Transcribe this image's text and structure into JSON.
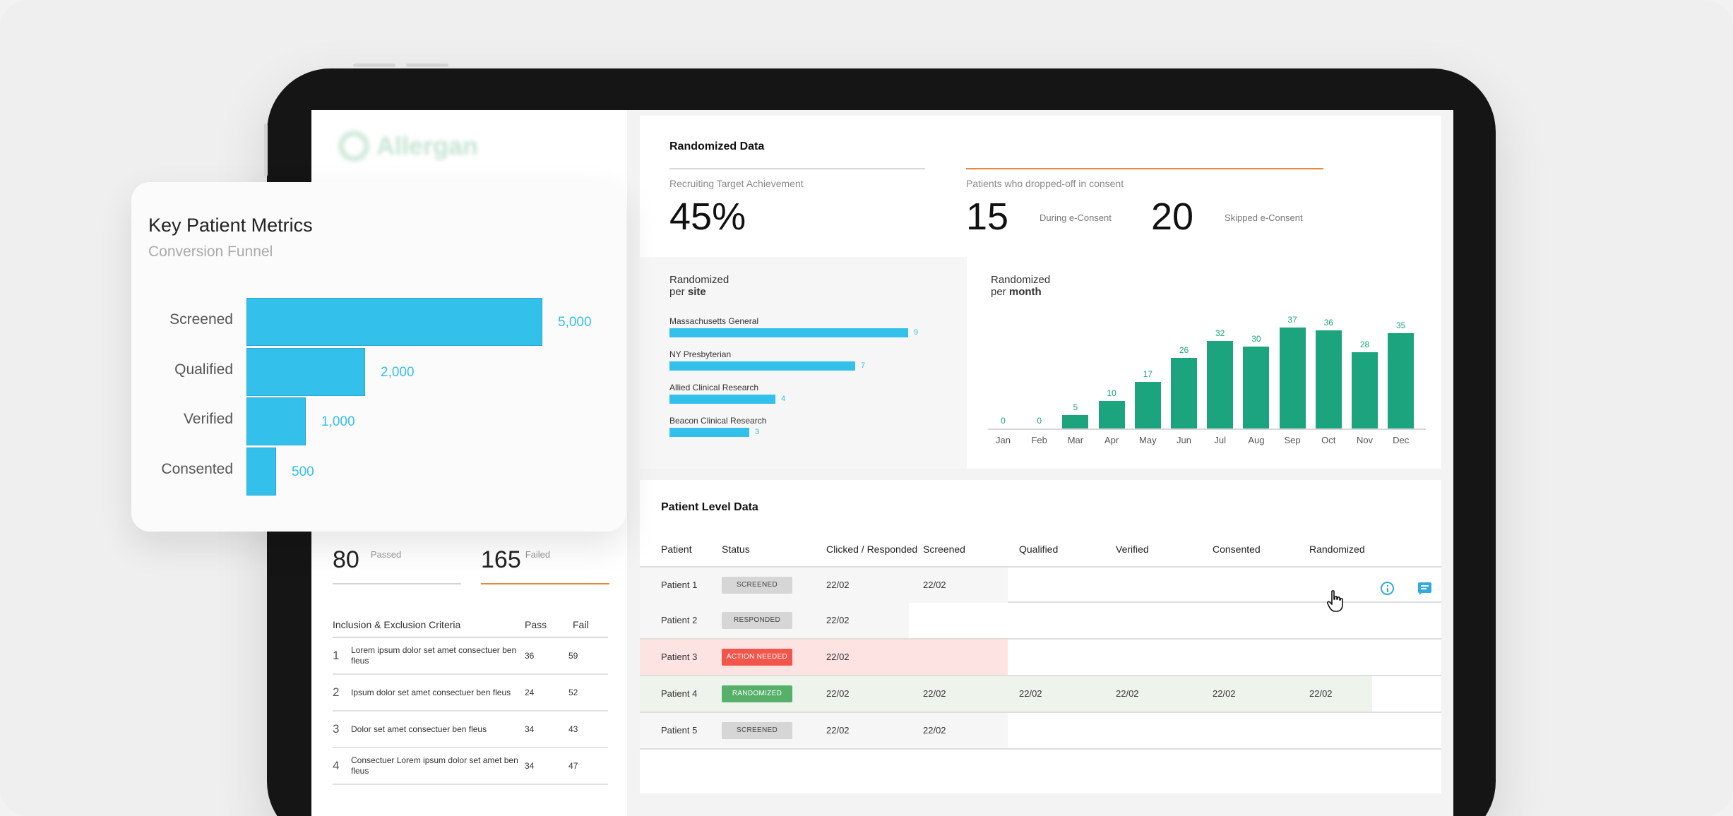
{
  "sidebar": {
    "logo_text": "Allergan",
    "passed": {
      "value": "80",
      "label": "Passed"
    },
    "failed": {
      "value": "165",
      "label": "Failed"
    },
    "criteria": {
      "headers": [
        "Inclusion & Exclusion Criteria",
        "Pass",
        "Fail"
      ],
      "rows": [
        {
          "idx": "1",
          "text": "Lorem ipsum dolor set amet consectuer ben fleus",
          "pass": "36",
          "fail": "59"
        },
        {
          "idx": "2",
          "text": "Ipsum dolor set amet consectuer ben fleus",
          "pass": "24",
          "fail": "52"
        },
        {
          "idx": "3",
          "text": "Dolor set amet consectuer ben fleus",
          "pass": "34",
          "fail": "43"
        },
        {
          "idx": "4",
          "text": "Consectuer Lorem ipsum dolor set amet ben fleus",
          "pass": "34",
          "fail": "47"
        }
      ]
    }
  },
  "randomized": {
    "title": "Randomized Data",
    "target": {
      "label": "Recruiting Target Achievement",
      "value": "45%"
    },
    "dropoff": {
      "label": "Patients who dropped-off in consent",
      "during": {
        "value": "15",
        "label": "During e-Consent"
      },
      "skipped": {
        "value": "20",
        "label": "Skipped e-Consent"
      }
    },
    "per_site_title": {
      "line1": "Randomized",
      "prefix": "per",
      "emph": "site"
    },
    "per_month_title": {
      "line1": "Randomized",
      "prefix": "per",
      "emph": "month"
    }
  },
  "patients": {
    "title": "Patient Level Data",
    "headers": [
      "Patient",
      "Status",
      "Clicked / Responded",
      "Screened",
      "Qualified",
      "Verified",
      "Consented",
      "Randomized"
    ],
    "rows": [
      {
        "name": "Patient 1",
        "status": "SCREENED",
        "clicked": "22/02",
        "screened": "22/02",
        "qualified": "",
        "verified": "",
        "consented": "",
        "randomized": ""
      },
      {
        "name": "Patient 2",
        "status": "RESPONDED",
        "clicked": "22/02",
        "screened": "",
        "qualified": "",
        "verified": "",
        "consented": "",
        "randomized": ""
      },
      {
        "name": "Patient 3",
        "status": "ACTION NEEDED",
        "clicked": "22/02",
        "screened": "",
        "qualified": "",
        "verified": "",
        "consented": "",
        "randomized": ""
      },
      {
        "name": "Patient 4",
        "status": "RANDOMIZED",
        "clicked": "22/02",
        "screened": "22/02",
        "qualified": "22/02",
        "verified": "22/02",
        "consented": "22/02",
        "randomized": "22/02"
      },
      {
        "name": "Patient 5",
        "status": "SCREENED",
        "clicked": "22/02",
        "screened": "22/02",
        "qualified": "",
        "verified": "",
        "consented": "",
        "randomized": ""
      }
    ],
    "icons": [
      "info-icon",
      "chat-icon",
      "cursor-hand-icon"
    ]
  },
  "metrics_card": {
    "title": "Key Patient Metrics",
    "subtitle": "Conversion Funnel"
  },
  "colors": {
    "accent_blue": "#33c0ea",
    "accent_green": "#1ba47d",
    "accent_orange": "#e8883d",
    "action_red": "#f2564b",
    "randomized_green": "#56b06a"
  },
  "chart_data": [
    {
      "type": "bar",
      "orientation": "horizontal",
      "title": "Conversion Funnel",
      "categories": [
        "Screened",
        "Qualified",
        "Verified",
        "Consented"
      ],
      "values": [
        5000,
        2000,
        1000,
        500
      ],
      "value_labels": [
        "5,000",
        "2,000",
        "1,000",
        "500"
      ],
      "color": "#33c0ea"
    },
    {
      "type": "bar",
      "orientation": "horizontal",
      "categories": [
        "Massachusetts General",
        "NY Presbyterian",
        "Allied Clinical Research",
        "Beacon Clinical Research"
      ],
      "values": [
        9,
        7,
        4,
        3
      ],
      "color": "#33c0ea"
    },
    {
      "type": "bar",
      "categories": [
        "Jan",
        "Feb",
        "Mar",
        "Apr",
        "May",
        "Jun",
        "Jul",
        "Aug",
        "Sep",
        "Oct",
        "Nov",
        "Dec"
      ],
      "values": [
        0,
        0,
        5,
        10,
        17,
        26,
        32,
        30,
        37,
        36,
        28,
        35
      ],
      "color": "#1ba47d"
    }
  ]
}
